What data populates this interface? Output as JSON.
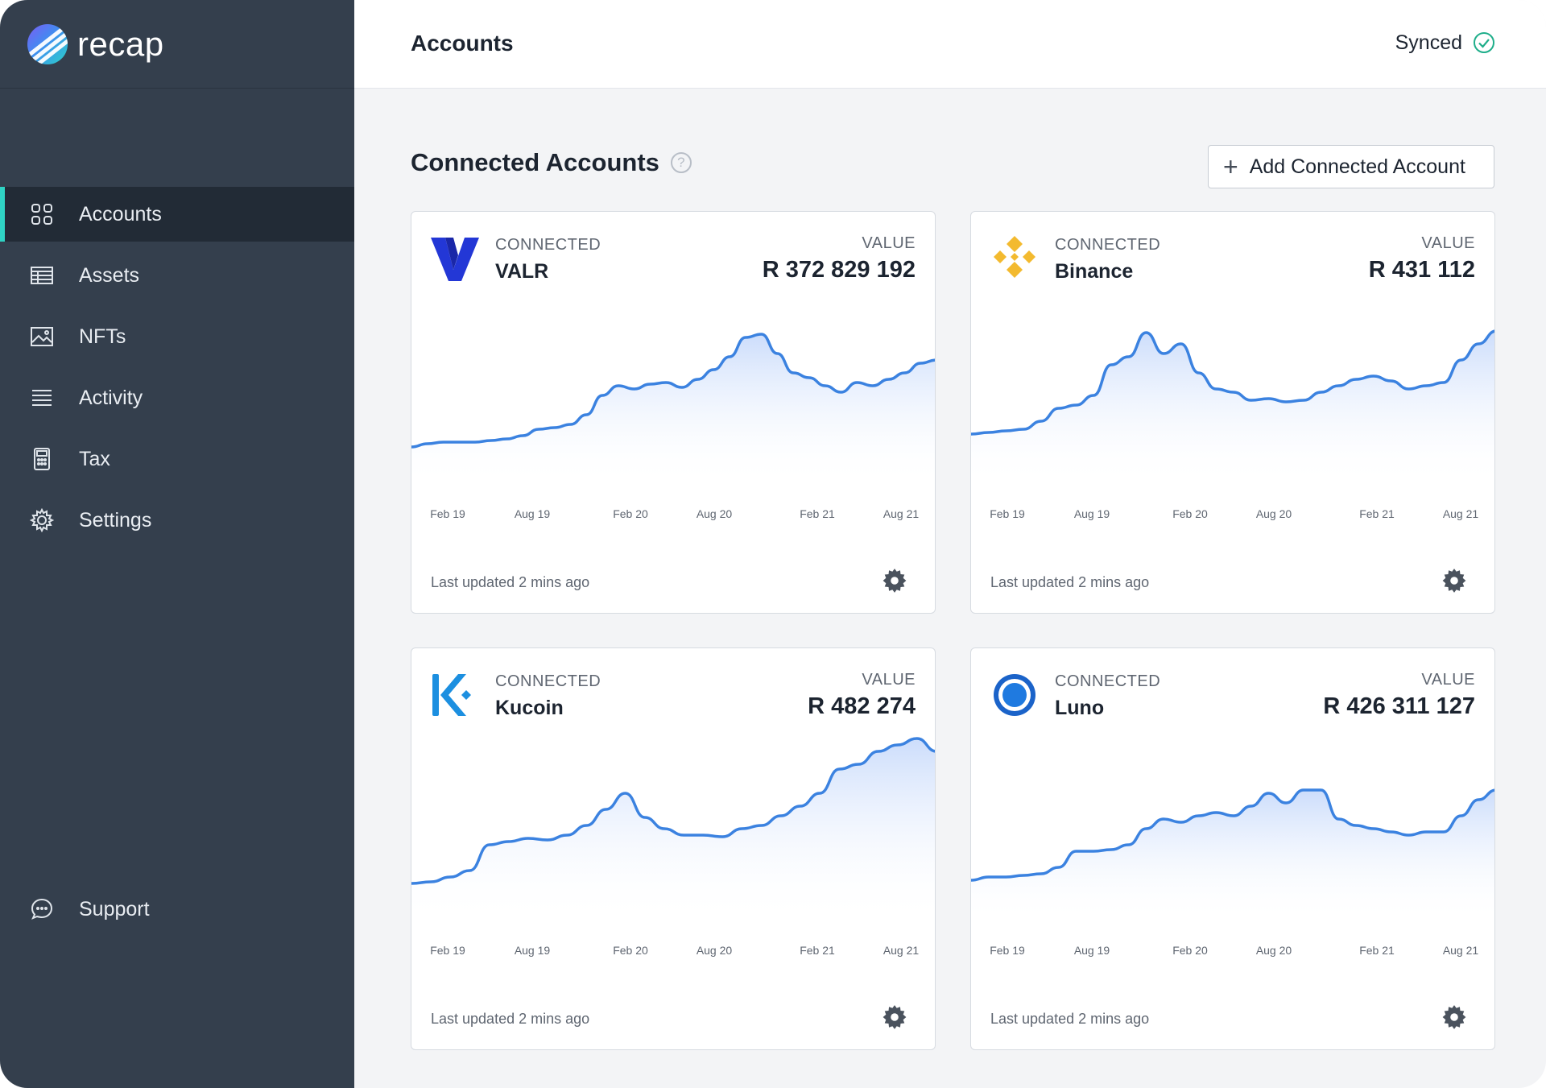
{
  "brand": {
    "name": "recap"
  },
  "header": {
    "title": "Accounts",
    "sync_status": "Synced"
  },
  "sidebar": {
    "items": [
      {
        "label": "Accounts",
        "icon": "grid-icon",
        "active": true
      },
      {
        "label": "Assets",
        "icon": "table-icon",
        "active": false
      },
      {
        "label": "NFTs",
        "icon": "image-icon",
        "active": false
      },
      {
        "label": "Activity",
        "icon": "list-icon",
        "active": false
      },
      {
        "label": "Tax",
        "icon": "calculator-icon",
        "active": false
      },
      {
        "label": "Settings",
        "icon": "gear-icon",
        "active": false
      }
    ],
    "support_label": "Support"
  },
  "main": {
    "section_title": "Connected Accounts",
    "add_button_label": "Add Connected Account"
  },
  "colors": {
    "accent": "#2fd3c4",
    "chart_line": "#3b82e0",
    "sidebar_bg": "#343f4d",
    "synced_check": "#1fae8a"
  },
  "accounts": [
    {
      "status": "CONNECTED",
      "name": "VALR",
      "value_label": "VALUE",
      "value": "R 372 829 192",
      "updated": "Last updated 2 mins ago",
      "logo": "valr-logo"
    },
    {
      "status": "CONNECTED",
      "name": "Binance",
      "value_label": "VALUE",
      "value": "R 431 112",
      "updated": "Last updated 2 mins ago",
      "logo": "binance-logo"
    },
    {
      "status": "CONNECTED",
      "name": "Kucoin",
      "value_label": "VALUE",
      "value": "R 482 274",
      "updated": "Last updated 2 mins ago",
      "logo": "kucoin-logo"
    },
    {
      "status": "CONNECTED",
      "name": "Luno",
      "value_label": "VALUE",
      "value": "R 426 311 127",
      "updated": "Last updated 2 mins ago",
      "logo": "luno-logo"
    }
  ],
  "chart_data": [
    {
      "type": "area",
      "x_ticks": [
        "Feb 19",
        "Aug 19",
        "Feb 20",
        "Aug 20",
        "Feb 21",
        "Aug 21"
      ],
      "values": [
        0.04,
        0.06,
        0.07,
        0.07,
        0.07,
        0.08,
        0.09,
        0.11,
        0.15,
        0.16,
        0.18,
        0.24,
        0.36,
        0.42,
        0.4,
        0.43,
        0.44,
        0.41,
        0.46,
        0.52,
        0.6,
        0.72,
        0.74,
        0.62,
        0.5,
        0.47,
        0.42,
        0.38,
        0.44,
        0.42,
        0.46,
        0.5,
        0.56,
        0.58
      ]
    },
    {
      "type": "area",
      "x_ticks": [
        "Feb 19",
        "Aug 19",
        "Feb 20",
        "Aug 20",
        "Feb 21",
        "Aug 21"
      ],
      "values": [
        0.12,
        0.13,
        0.14,
        0.15,
        0.2,
        0.28,
        0.3,
        0.36,
        0.55,
        0.6,
        0.75,
        0.62,
        0.68,
        0.5,
        0.4,
        0.38,
        0.33,
        0.34,
        0.32,
        0.33,
        0.38,
        0.42,
        0.46,
        0.48,
        0.45,
        0.4,
        0.42,
        0.44,
        0.58,
        0.68,
        0.76
      ]
    },
    {
      "type": "area",
      "x_ticks": [
        "Feb 19",
        "Aug 19",
        "Feb 20",
        "Aug 20",
        "Feb 21",
        "Aug 21"
      ],
      "values": [
        0.04,
        0.05,
        0.08,
        0.12,
        0.28,
        0.3,
        0.32,
        0.31,
        0.34,
        0.4,
        0.5,
        0.6,
        0.45,
        0.38,
        0.34,
        0.34,
        0.33,
        0.38,
        0.4,
        0.46,
        0.52,
        0.6,
        0.75,
        0.78,
        0.86,
        0.9,
        0.94,
        0.86
      ]
    },
    {
      "type": "area",
      "x_ticks": [
        "Feb 19",
        "Aug 19",
        "Feb 20",
        "Aug 20",
        "Feb 21",
        "Aug 21"
      ],
      "values": [
        0.06,
        0.08,
        0.08,
        0.09,
        0.1,
        0.14,
        0.24,
        0.24,
        0.25,
        0.28,
        0.38,
        0.44,
        0.42,
        0.46,
        0.48,
        0.46,
        0.52,
        0.6,
        0.54,
        0.62,
        0.62,
        0.44,
        0.4,
        0.38,
        0.36,
        0.34,
        0.36,
        0.36,
        0.46,
        0.56,
        0.62
      ]
    }
  ]
}
